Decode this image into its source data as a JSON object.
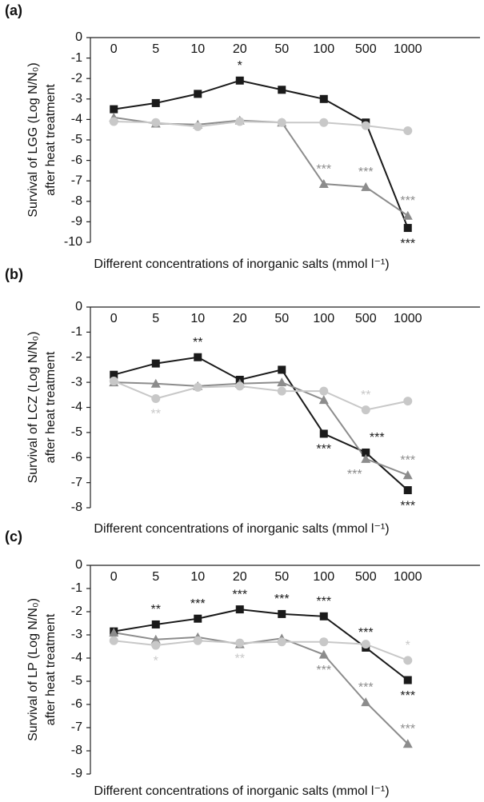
{
  "chart_data": [
    {
      "type": "line",
      "title": "(a)",
      "ylabel": [
        "Survival of LGG (Log N/N₀)",
        "after heat treatment"
      ],
      "xlabel": "Different concentrations of inorganic salts (mmol l⁻¹)",
      "categories": [
        "0",
        "5",
        "10",
        "20",
        "50",
        "100",
        "500",
        "1000"
      ],
      "ylim": [
        -10,
        0
      ],
      "yticks": [
        0,
        -1,
        -2,
        -3,
        -4,
        -5,
        -6,
        -7,
        -8,
        -9,
        -10
      ],
      "series": [
        {
          "color": "#1a1a1a",
          "marker": "square",
          "values": [
            -3.5,
            -3.2,
            -2.75,
            -2.1,
            -2.55,
            -3.0,
            -4.15,
            -9.3
          ],
          "significance": [
            null,
            null,
            null,
            "*",
            null,
            null,
            null,
            "***"
          ]
        },
        {
          "color": "#8c8c8c",
          "marker": "triangle",
          "values": [
            -3.9,
            -4.2,
            -4.25,
            -4.05,
            -4.15,
            -7.15,
            -7.3,
            -8.7
          ],
          "significance": [
            null,
            null,
            null,
            null,
            null,
            "***",
            "***",
            "***"
          ]
        },
        {
          "color": "#c8c8c8",
          "marker": "circle",
          "values": [
            -4.1,
            -4.15,
            -4.35,
            -4.1,
            -4.15,
            -4.15,
            -4.3,
            -4.55
          ],
          "significance": [
            null,
            null,
            null,
            null,
            null,
            null,
            null,
            null
          ]
        }
      ]
    },
    {
      "type": "line",
      "title": "(b)",
      "ylabel": [
        "Survival of LCZ (Log N/N₀)",
        "after heat treatment"
      ],
      "xlabel": "Different concentrations of inorganic salts (mmol l⁻¹)",
      "categories": [
        "0",
        "5",
        "10",
        "20",
        "50",
        "100",
        "500",
        "1000"
      ],
      "ylim": [
        -8,
        0
      ],
      "yticks": [
        0,
        -1,
        -2,
        -3,
        -4,
        -5,
        -6,
        -7,
        -8
      ],
      "series": [
        {
          "color": "#1a1a1a",
          "marker": "square",
          "values": [
            -2.7,
            -2.25,
            -2.0,
            -2.9,
            -2.5,
            -5.05,
            -5.8,
            -7.3
          ],
          "significance": [
            null,
            null,
            "**",
            null,
            null,
            "***",
            "***",
            "***"
          ]
        },
        {
          "color": "#8c8c8c",
          "marker": "triangle",
          "values": [
            -3.0,
            -3.05,
            -3.15,
            -3.05,
            -3.0,
            -3.7,
            -6.05,
            -6.7
          ],
          "significance": [
            null,
            null,
            null,
            null,
            null,
            null,
            "***",
            "***"
          ]
        },
        {
          "color": "#c8c8c8",
          "marker": "circle",
          "values": [
            -2.95,
            -3.65,
            -3.2,
            -3.15,
            -3.35,
            -3.35,
            -4.1,
            -3.75
          ],
          "significance": [
            null,
            "**",
            null,
            null,
            null,
            null,
            "**",
            null
          ]
        }
      ]
    },
    {
      "type": "line",
      "title": "(c)",
      "ylabel": [
        "Survival of LP (Log N/N₀)",
        "after heat treatment"
      ],
      "xlabel": "Different concentrations of inorganic salts (mmol l⁻¹)",
      "categories": [
        "0",
        "5",
        "10",
        "20",
        "50",
        "100",
        "500",
        "1000"
      ],
      "ylim": [
        -9,
        0
      ],
      "yticks": [
        0,
        -1,
        -2,
        -3,
        -4,
        -5,
        -6,
        -7,
        -8,
        -9
      ],
      "series": [
        {
          "color": "#1a1a1a",
          "marker": "square",
          "values": [
            -2.85,
            -2.55,
            -2.3,
            -1.9,
            -2.1,
            -2.2,
            -3.55,
            -4.95
          ],
          "significance": [
            null,
            "**",
            "***",
            "***",
            "***",
            "***",
            "***",
            "***"
          ]
        },
        {
          "color": "#8c8c8c",
          "marker": "triangle",
          "values": [
            -2.9,
            -3.2,
            -3.1,
            -3.4,
            -3.15,
            -3.85,
            -5.9,
            -7.7
          ],
          "significance": [
            null,
            null,
            null,
            null,
            null,
            "***",
            "***",
            "***"
          ]
        },
        {
          "color": "#c8c8c8",
          "marker": "circle",
          "values": [
            -3.25,
            -3.45,
            -3.25,
            -3.35,
            -3.3,
            -3.3,
            -3.4,
            -4.1
          ],
          "significance": [
            null,
            "*",
            null,
            "**",
            null,
            null,
            null,
            "*"
          ]
        }
      ]
    }
  ]
}
